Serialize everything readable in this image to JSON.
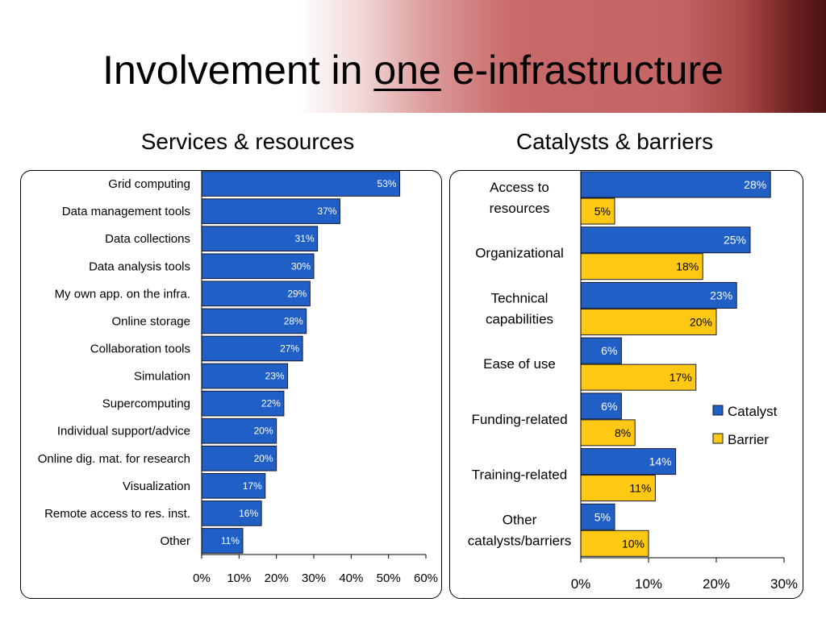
{
  "slide": {
    "title_before": "Involvement in ",
    "title_underlined": "one",
    "title_after": " e-infrastructure"
  },
  "colors": {
    "catalyst": "#1f5fc6",
    "barrier": "#ffc913",
    "banner_red": "#c56464"
  },
  "chart_data": [
    {
      "type": "bar",
      "orientation": "horizontal",
      "title": "Services & resources",
      "categories": [
        "Grid computing",
        "Data management tools",
        "Data collections",
        "Data analysis tools",
        "My own app. on the infra.",
        "Online storage",
        "Collaboration tools",
        "Simulation",
        "Supercomputing",
        "Individual support/advice",
        "Online dig. mat. for research",
        "Visualization",
        "Remote access to res. inst.",
        "Other"
      ],
      "values": [
        53,
        37,
        31,
        30,
        29,
        28,
        27,
        23,
        22,
        20,
        20,
        17,
        16,
        11
      ],
      "labels": [
        "53%",
        "37%",
        "31%",
        "30%",
        "29%",
        "28%",
        "27%",
        "23%",
        "22%",
        "20%",
        "20%",
        "17%",
        "16%",
        "11%"
      ],
      "xlim": [
        0,
        60
      ],
      "xticks": [
        "0%",
        "10%",
        "20%",
        "30%",
        "40%",
        "50%",
        "60%"
      ],
      "grid": false
    },
    {
      "type": "bar",
      "orientation": "horizontal",
      "title": "Catalysts & barriers",
      "categories": [
        [
          "Access to",
          "resources"
        ],
        [
          "Organizational"
        ],
        [
          "Technical",
          "capabilities"
        ],
        [
          "Ease of use"
        ],
        [
          "Funding-related"
        ],
        [
          "Training-related"
        ],
        [
          "Other",
          "catalysts/barriers"
        ]
      ],
      "series": [
        {
          "name": "Catalyst",
          "values": [
            28,
            25,
            23,
            6,
            6,
            14,
            5
          ],
          "labels": [
            "28%",
            "25%",
            "23%",
            "6%",
            "6%",
            "14%",
            "5%"
          ]
        },
        {
          "name": "Barrier",
          "values": [
            5,
            18,
            20,
            17,
            8,
            11,
            10
          ],
          "labels": [
            "5%",
            "18%",
            "20%",
            "17%",
            "8%",
            "11%",
            "10%"
          ]
        }
      ],
      "xlim": [
        0,
        30
      ],
      "xticks": [
        "0%",
        "10%",
        "20%",
        "30%"
      ],
      "legend": "right",
      "grid": false
    }
  ]
}
